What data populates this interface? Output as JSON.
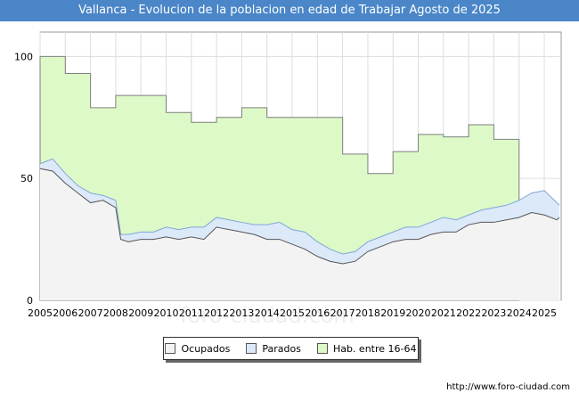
{
  "title": "Vallanca - Evolucion de la poblacion en edad de Trabajar Agosto de 2025",
  "watermark": "foro-ciudad.com",
  "source": "http://www.foro-ciudad.com",
  "legend": {
    "ocupados": "Ocupados",
    "parados": "Parados",
    "hab": "Hab. entre 16-64"
  },
  "colors": {
    "title_bg": "#4a86c8",
    "ocupados_fill": "#f3f3f3",
    "ocupados_line": "#555555",
    "parados_fill": "#dce9f9",
    "parados_line": "#7fa6d6",
    "hab_fill": "#ddf9c8",
    "hab_line": "#7f7f7f"
  },
  "chart_data": {
    "type": "area",
    "x_range": [
      2005,
      2025.67
    ],
    "ylim": [
      0,
      110
    ],
    "yticks": [
      0,
      50,
      100
    ],
    "xticks": [
      "2005",
      "2006",
      "2007",
      "2008",
      "2009",
      "2010",
      "2011",
      "2012",
      "2013",
      "2014",
      "2015",
      "2016",
      "2017",
      "2018",
      "2019",
      "2020",
      "2021",
      "2022",
      "2023",
      "2024",
      "2025"
    ],
    "grid": true,
    "legend_position": "bottom",
    "series": [
      {
        "name": "Hab. entre 16-64",
        "step": true,
        "x": [
          2005,
          2006,
          2007,
          2008,
          2009,
          2010,
          2011,
          2012,
          2013,
          2014,
          2015,
          2016,
          2017,
          2018,
          2019,
          2020,
          2021,
          2022,
          2023,
          2024
        ],
        "values": [
          100,
          93,
          79,
          84,
          84,
          77,
          73,
          75,
          79,
          75,
          75,
          75,
          60,
          52,
          61,
          68,
          67,
          72,
          66,
          null
        ]
      },
      {
        "name": "Parados",
        "x": [
          2005,
          2005.5,
          2006,
          2006.5,
          2007,
          2007.5,
          2008,
          2008.2,
          2008.5,
          2009,
          2009.5,
          2010,
          2010.5,
          2011,
          2011.5,
          2012,
          2012.5,
          2013,
          2013.5,
          2014,
          2014.5,
          2015,
          2015.5,
          2016,
          2016.5,
          2017,
          2017.5,
          2018,
          2018.5,
          2019,
          2019.5,
          2020,
          2020.5,
          2021,
          2021.5,
          2022,
          2022.5,
          2023,
          2023.5,
          2024,
          2024.5,
          2025,
          2025.5,
          2025.6
        ],
        "values": [
          56,
          58,
          52,
          47,
          44,
          43,
          41,
          27,
          27,
          28,
          28,
          30,
          29,
          30,
          30,
          34,
          33,
          32,
          31,
          31,
          32,
          29,
          28,
          24,
          21,
          19,
          20,
          24,
          26,
          28,
          30,
          30,
          32,
          34,
          33,
          35,
          37,
          38,
          39,
          41,
          44,
          45,
          40,
          39
        ]
      },
      {
        "name": "Ocupados",
        "x": [
          2005,
          2005.5,
          2006,
          2006.5,
          2007,
          2007.5,
          2008,
          2008.2,
          2008.5,
          2009,
          2009.5,
          2010,
          2010.5,
          2011,
          2011.5,
          2012,
          2012.5,
          2013,
          2013.5,
          2014,
          2014.5,
          2015,
          2015.5,
          2016,
          2016.5,
          2017,
          2017.5,
          2018,
          2018.5,
          2019,
          2019.5,
          2020,
          2020.5,
          2021,
          2021.5,
          2022,
          2022.5,
          2023,
          2023.5,
          2024,
          2024.5,
          2025,
          2025.5,
          2025.6
        ],
        "values": [
          54,
          53,
          48,
          44,
          40,
          41,
          38,
          25,
          24,
          25,
          25,
          26,
          25,
          26,
          25,
          30,
          29,
          28,
          27,
          25,
          25,
          23,
          21,
          18,
          16,
          15,
          16,
          20,
          22,
          24,
          25,
          25,
          27,
          28,
          28,
          31,
          32,
          32,
          33,
          34,
          36,
          35,
          33,
          34
        ]
      }
    ]
  }
}
